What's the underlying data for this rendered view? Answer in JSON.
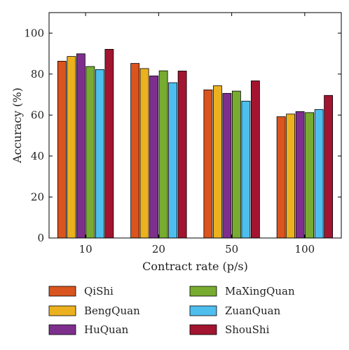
{
  "chart_data": {
    "type": "bar",
    "categories": [
      "10",
      "20",
      "50",
      "100"
    ],
    "series": [
      {
        "name": "QiShi",
        "values": [
          86.3,
          85.2,
          72.3,
          59.2
        ],
        "color": "#d9541e"
      },
      {
        "name": "BengQuan",
        "values": [
          88.6,
          82.7,
          74.3,
          60.5
        ],
        "color": "#ecb11f"
      },
      {
        "name": "HuQuan",
        "values": [
          89.9,
          79.1,
          70.6,
          61.7
        ],
        "color": "#7e2f8e"
      },
      {
        "name": "MaXingQuan",
        "values": [
          83.7,
          81.6,
          71.7,
          61.2
        ],
        "color": "#77ac30"
      },
      {
        "name": "ZuanQuan",
        "values": [
          82.2,
          75.8,
          66.8,
          62.7
        ],
        "color": "#4dbeee"
      },
      {
        "name": "ShouShi",
        "values": [
          92.1,
          81.5,
          76.7,
          69.6
        ],
        "color": "#a2142f"
      }
    ],
    "title": "",
    "xlabel": "Contract rate (p/s)",
    "ylabel": "Accuracy (%)",
    "ylim": [
      0,
      110
    ],
    "yticks": [
      0,
      20,
      40,
      60,
      80,
      100
    ],
    "grid": false,
    "legend_position": "bottom"
  }
}
